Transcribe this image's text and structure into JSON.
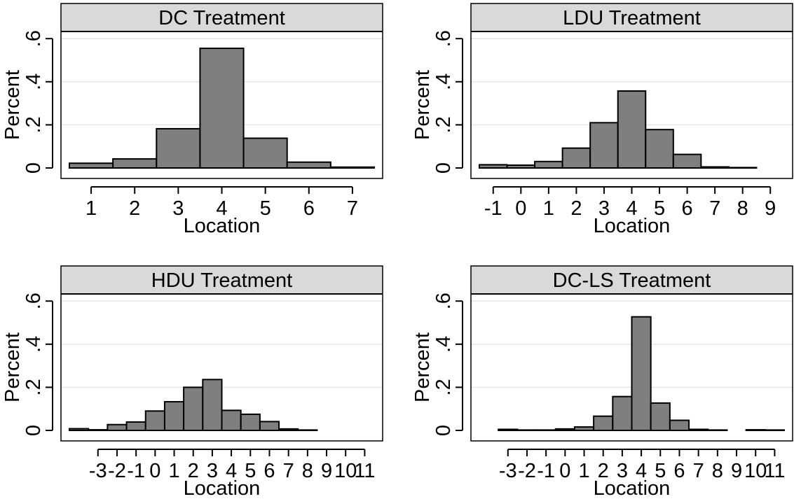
{
  "colors": {
    "bar_fill": "#7f7f7f",
    "bar_stroke": "#000000",
    "header_fill": "#d9d9d9",
    "grid": "#e6e6e6"
  },
  "chart_data": [
    {
      "type": "bar",
      "title": "DC Treatment",
      "xlabel": "Location",
      "ylabel": "Percent",
      "ylim": [
        0,
        0.65
      ],
      "yticks": [
        0,
        0.2,
        0.4,
        0.6
      ],
      "ytick_labels": [
        "0",
        ".2",
        ".4",
        ".6"
      ],
      "xlim": [
        0.5,
        7.5
      ],
      "xticks": [
        1,
        2,
        3,
        4,
        5,
        6,
        7
      ],
      "xtick_labels": [
        "1",
        "2",
        "3",
        "4",
        "5",
        "6",
        "7"
      ],
      "grid": true,
      "bins": [
        {
          "x": 1,
          "value": 0.022
        },
        {
          "x": 2,
          "value": 0.042
        },
        {
          "x": 3,
          "value": 0.182
        },
        {
          "x": 4,
          "value": 0.555
        },
        {
          "x": 5,
          "value": 0.138
        },
        {
          "x": 6,
          "value": 0.027
        },
        {
          "x": 7,
          "value": 0.004
        }
      ]
    },
    {
      "type": "bar",
      "title": "LDU Treatment",
      "xlabel": "Location",
      "ylabel": "Percent",
      "ylim": [
        0,
        0.65
      ],
      "yticks": [
        0,
        0.2,
        0.4,
        0.6
      ],
      "ytick_labels": [
        "0",
        ".2",
        ".4",
        ".6"
      ],
      "xlim": [
        -1.5,
        9.5
      ],
      "xticks": [
        -1,
        0,
        1,
        2,
        3,
        4,
        5,
        6,
        7,
        8,
        9
      ],
      "xtick_labels": [
        "-1",
        "0",
        "1",
        "2",
        "3",
        "4",
        "5",
        "6",
        "7",
        "8",
        "9"
      ],
      "grid": true,
      "bins": [
        {
          "x": -1,
          "value": 0.015
        },
        {
          "x": 0,
          "value": 0.013
        },
        {
          "x": 1,
          "value": 0.03
        },
        {
          "x": 2,
          "value": 0.092
        },
        {
          "x": 3,
          "value": 0.21
        },
        {
          "x": 4,
          "value": 0.357
        },
        {
          "x": 5,
          "value": 0.178
        },
        {
          "x": 6,
          "value": 0.063
        },
        {
          "x": 7,
          "value": 0.005
        },
        {
          "x": 8,
          "value": 0.002
        }
      ]
    },
    {
      "type": "bar",
      "title": "HDU Treatment",
      "xlabel": "Location",
      "ylabel": "Percent",
      "ylim": [
        0,
        0.65
      ],
      "yticks": [
        0,
        0.2,
        0.4,
        0.6
      ],
      "ytick_labels": [
        "0",
        ".2",
        ".4",
        ".6"
      ],
      "xlim": [
        -4.5,
        11.5
      ],
      "xticks": [
        -3,
        -2,
        -1,
        0,
        1,
        2,
        3,
        4,
        5,
        6,
        7,
        8,
        9,
        10,
        11
      ],
      "xtick_labels": [
        "-3",
        "-2",
        "-1",
        "0",
        "1",
        "2",
        "3",
        "4",
        "5",
        "6",
        "7",
        "8",
        "9",
        "10",
        "11"
      ],
      "grid": true,
      "bins": [
        {
          "x": -4,
          "value": 0.008
        },
        {
          "x": -3,
          "value": 0.003
        },
        {
          "x": -2,
          "value": 0.027
        },
        {
          "x": -1,
          "value": 0.039
        },
        {
          "x": 0,
          "value": 0.09
        },
        {
          "x": 1,
          "value": 0.133
        },
        {
          "x": 2,
          "value": 0.2
        },
        {
          "x": 3,
          "value": 0.236
        },
        {
          "x": 4,
          "value": 0.093
        },
        {
          "x": 5,
          "value": 0.075
        },
        {
          "x": 6,
          "value": 0.041
        },
        {
          "x": 7,
          "value": 0.007
        },
        {
          "x": 8,
          "value": 0.002
        }
      ]
    },
    {
      "type": "bar",
      "title": "DC-LS Treatment",
      "xlabel": "Location",
      "ylabel": "Percent",
      "ylim": [
        0,
        0.65
      ],
      "yticks": [
        0,
        0.2,
        0.4,
        0.6
      ],
      "ytick_labels": [
        "0",
        ".2",
        ".4",
        ".6"
      ],
      "xlim": [
        -4.5,
        11.5
      ],
      "xticks": [
        -3,
        -2,
        -1,
        0,
        1,
        2,
        3,
        4,
        5,
        6,
        7,
        8,
        9,
        10,
        11
      ],
      "xtick_labels": [
        "-3",
        "-2",
        "-1",
        "0",
        "1",
        "2",
        "3",
        "4",
        "5",
        "6",
        "7",
        "8",
        "9",
        "10",
        "11"
      ],
      "grid": true,
      "bins": [
        {
          "x": -3,
          "value": 0.005
        },
        {
          "x": -2,
          "value": 0.002
        },
        {
          "x": -1,
          "value": 0.002
        },
        {
          "x": 0,
          "value": 0.007
        },
        {
          "x": 1,
          "value": 0.016
        },
        {
          "x": 2,
          "value": 0.066
        },
        {
          "x": 3,
          "value": 0.157
        },
        {
          "x": 4,
          "value": 0.527
        },
        {
          "x": 5,
          "value": 0.127
        },
        {
          "x": 6,
          "value": 0.047
        },
        {
          "x": 7,
          "value": 0.005
        },
        {
          "x": 8,
          "value": 0.002
        },
        {
          "x": 10,
          "value": 0.003
        },
        {
          "x": 11,
          "value": 0.002
        }
      ]
    }
  ]
}
